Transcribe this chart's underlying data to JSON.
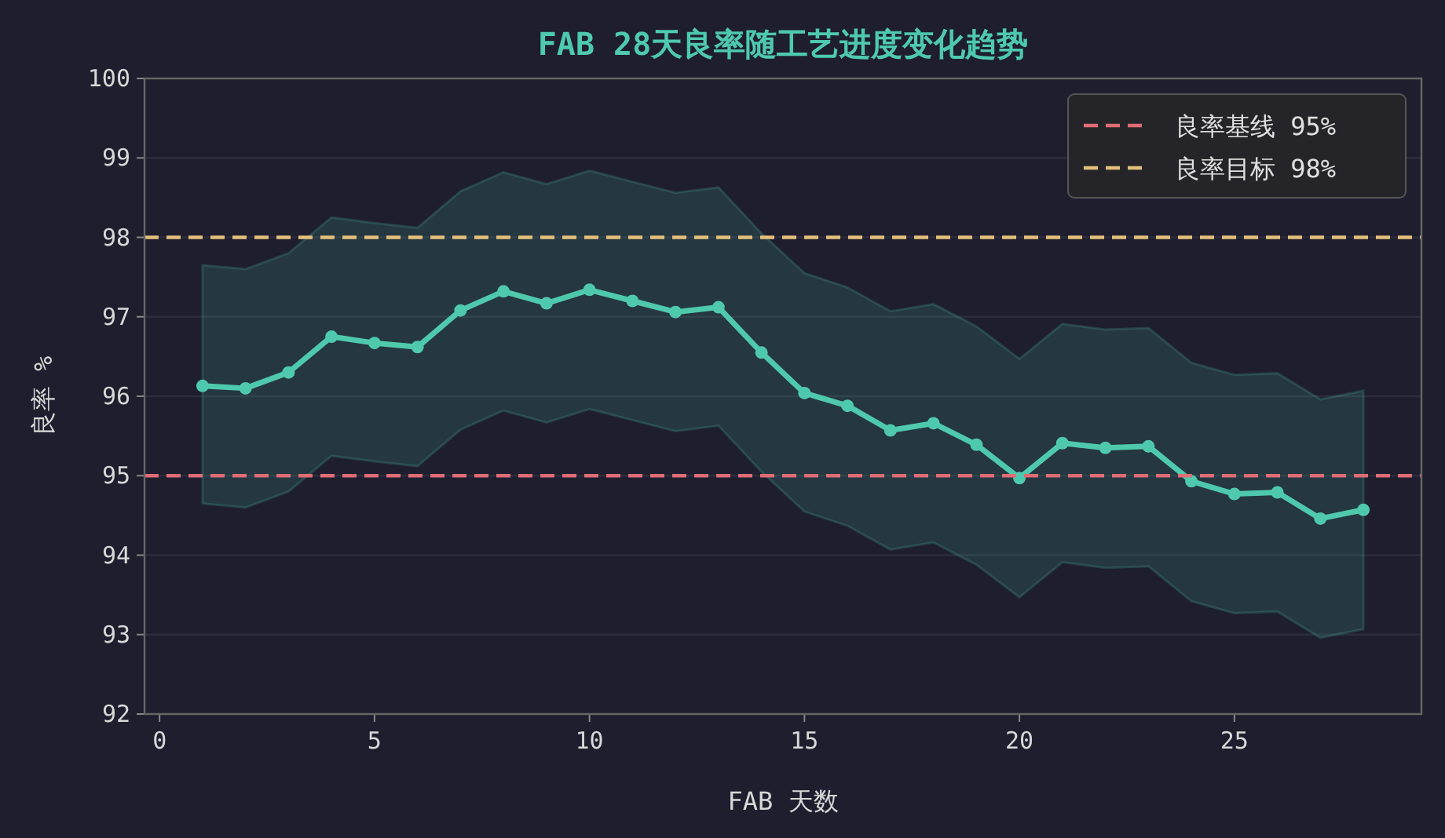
{
  "chart_data": {
    "type": "line",
    "title": "FAB 28天良率随工艺进度变化趋势",
    "xlabel": "FAB 天数",
    "ylabel": "良率 %",
    "x": [
      1,
      2,
      3,
      4,
      5,
      6,
      7,
      8,
      9,
      10,
      11,
      12,
      13,
      14,
      15,
      16,
      17,
      18,
      19,
      20,
      21,
      22,
      23,
      24,
      25,
      26,
      27,
      28
    ],
    "series": [
      {
        "color": "#4fc9ad",
        "values": [
          96.13,
          96.1,
          96.3,
          96.75,
          96.67,
          96.62,
          97.08,
          97.32,
          97.17,
          97.34,
          97.2,
          97.06,
          97.12,
          96.55,
          96.04,
          95.88,
          95.57,
          95.66,
          95.39,
          94.97,
          95.41,
          95.35,
          95.37,
          94.93,
          94.77,
          94.79,
          94.46,
          94.57
        ],
        "upper": [
          97.65,
          97.6,
          97.8,
          98.25,
          98.18,
          98.12,
          98.58,
          98.82,
          98.67,
          98.84,
          98.7,
          98.56,
          98.63,
          98.05,
          97.55,
          97.37,
          97.07,
          97.16,
          96.88,
          96.47,
          96.91,
          96.84,
          96.86,
          96.42,
          96.27,
          96.29,
          95.96,
          96.07
        ],
        "lower": [
          94.65,
          94.6,
          94.8,
          95.25,
          95.18,
          95.12,
          95.58,
          95.82,
          95.67,
          95.84,
          95.7,
          95.56,
          95.63,
          95.05,
          94.55,
          94.37,
          94.07,
          94.16,
          93.88,
          93.47,
          93.91,
          93.84,
          93.86,
          93.42,
          93.27,
          93.29,
          92.96,
          93.07
        ]
      }
    ],
    "ref_lines": [
      {
        "axis": "y",
        "value": 95,
        "label": "良率基线 95%",
        "color": "#e06c75",
        "line_style": "dashed"
      },
      {
        "axis": "y",
        "value": 98,
        "label": "良率目标 98%",
        "color": "#e5c07b",
        "line_style": "dashed"
      }
    ],
    "xlim": [
      -0.35,
      29.35
    ],
    "ylim": [
      92,
      100
    ],
    "xticks": [
      0,
      5,
      10,
      15,
      20,
      25
    ],
    "yticks": [
      92,
      93,
      94,
      95,
      96,
      97,
      98,
      99,
      100
    ],
    "grid": "y",
    "legend": "top right",
    "marker": "circle",
    "line_style": "solid"
  }
}
